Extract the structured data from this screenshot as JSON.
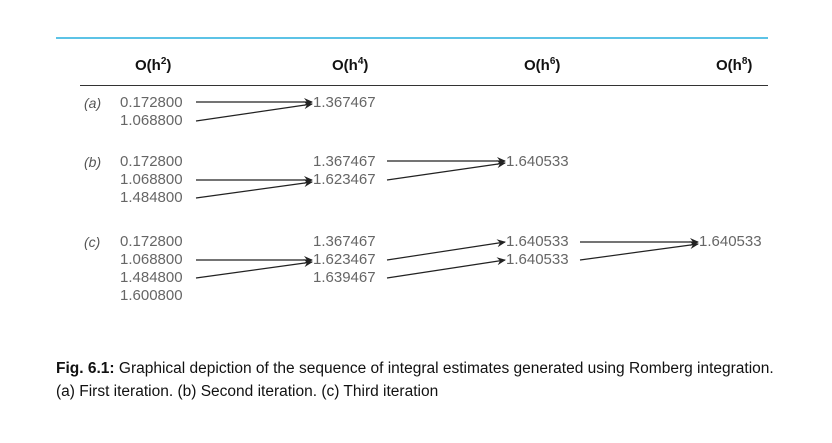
{
  "headers": [
    {
      "base": "O(h",
      "exp": "2",
      "tail": ")"
    },
    {
      "base": "O(h",
      "exp": "4",
      "tail": ")"
    },
    {
      "base": "O(h",
      "exp": "6",
      "tail": ")"
    },
    {
      "base": "O(h",
      "exp": "8",
      "tail": ")"
    }
  ],
  "iterations": [
    {
      "label": "(a)",
      "col1": [
        "0.172800",
        "1.068800"
      ],
      "col2": [
        "1.367467"
      ],
      "col3": [],
      "col4": []
    },
    {
      "label": "(b)",
      "col1": [
        "0.172800",
        "1.068800",
        "1.484800"
      ],
      "col2": [
        "1.367467",
        "1.623467"
      ],
      "col3": [
        "1.640533"
      ],
      "col4": []
    },
    {
      "label": "(c)",
      "col1": [
        "0.172800",
        "1.068800",
        "1.484800",
        "1.600800"
      ],
      "col2": [
        "1.367467",
        "1.623467",
        "1.639467"
      ],
      "col3": [
        "1.640533",
        "1.640533"
      ],
      "col4": [
        "1.640533"
      ]
    }
  ],
  "caption": {
    "bold": "Fig. 6.1:",
    "text": " Graphical depiction of the sequence of integral estimates generated using Romberg integration. (a) First iteration. (b) Second iteration. (c) Third iteration"
  }
}
